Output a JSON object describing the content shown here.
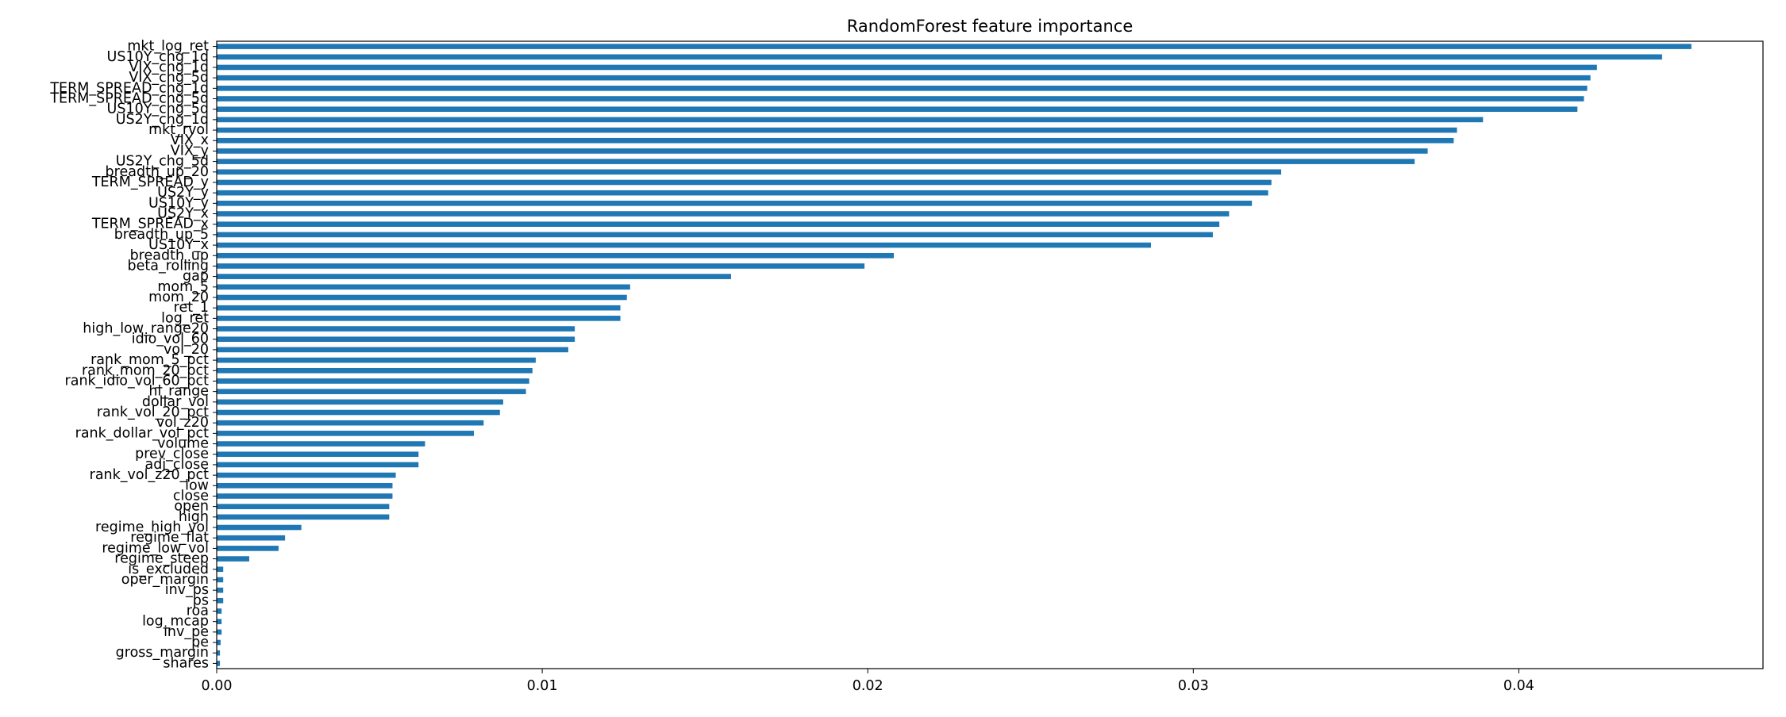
{
  "chart_data": {
    "type": "bar",
    "orientation": "horizontal",
    "title": "RandomForest feature importance",
    "xlabel": "",
    "ylabel": "",
    "xlim": [
      0,
      0.0475
    ],
    "x_ticks": [
      0.0,
      0.01,
      0.02,
      0.03,
      0.04
    ],
    "x_tick_labels": [
      "0.00",
      "0.01",
      "0.02",
      "0.03",
      "0.04"
    ],
    "grid": false,
    "legend": null,
    "bar_color": "#1f77b4",
    "categories": [
      "mkt_log_ret",
      "US10Y_chg_1d",
      "VIX_chg_1d",
      "VIX_chg_5d",
      "TERM_SPREAD_chg_1d",
      "TERM_SPREAD_chg_5d",
      "US10Y_chg_5d",
      "US2Y_chg_1d",
      "mkt_rvol",
      "VIX_x",
      "VIX_y",
      "US2Y_chg_5d",
      "breadth_up_20",
      "TERM_SPREAD_y",
      "US2Y_y",
      "US10Y_y",
      "US2Y_x",
      "TERM_SPREAD_x",
      "breadth_up_5",
      "US10Y_x",
      "breadth_up",
      "beta_rolling",
      "gap",
      "mom_5",
      "mom_20",
      "ret_1",
      "log_ret",
      "high_low_range20",
      "idio_vol_60",
      "vol_20",
      "rank_mom_5_pct",
      "rank_mom_20_pct",
      "rank_idio_vol_60_pct",
      "hl_range",
      "dollar_vol",
      "rank_vol_20_pct",
      "vol_z20",
      "rank_dollar_vol_pct",
      "volume",
      "prev_close",
      "adj_close",
      "rank_vol_z20_pct",
      "low",
      "close",
      "open",
      "high",
      "regime_high_vol",
      "regime_flat",
      "regime_low_vol",
      "regime_steep",
      "is_excluded",
      "oper_margin",
      "inv_ps",
      "ps",
      "roa",
      "log_mcap",
      "inv_pe",
      "pe",
      "gross_margin",
      "shares"
    ],
    "values": [
      0.0453,
      0.0444,
      0.0424,
      0.0422,
      0.0421,
      0.042,
      0.0418,
      0.0389,
      0.0381,
      0.038,
      0.0372,
      0.0368,
      0.0327,
      0.0324,
      0.0323,
      0.0318,
      0.0311,
      0.0308,
      0.0306,
      0.0287,
      0.0208,
      0.0199,
      0.0158,
      0.0127,
      0.0126,
      0.0124,
      0.0124,
      0.011,
      0.011,
      0.0108,
      0.0098,
      0.0097,
      0.0096,
      0.0095,
      0.0088,
      0.0087,
      0.0082,
      0.0079,
      0.0064,
      0.0062,
      0.0062,
      0.0055,
      0.0054,
      0.0054,
      0.0053,
      0.0053,
      0.0026,
      0.0021,
      0.0019,
      0.001,
      0.0002,
      0.0002,
      0.0002,
      0.0002,
      0.00015,
      0.00015,
      0.00015,
      0.00012,
      0.0001,
      0.0001
    ]
  }
}
